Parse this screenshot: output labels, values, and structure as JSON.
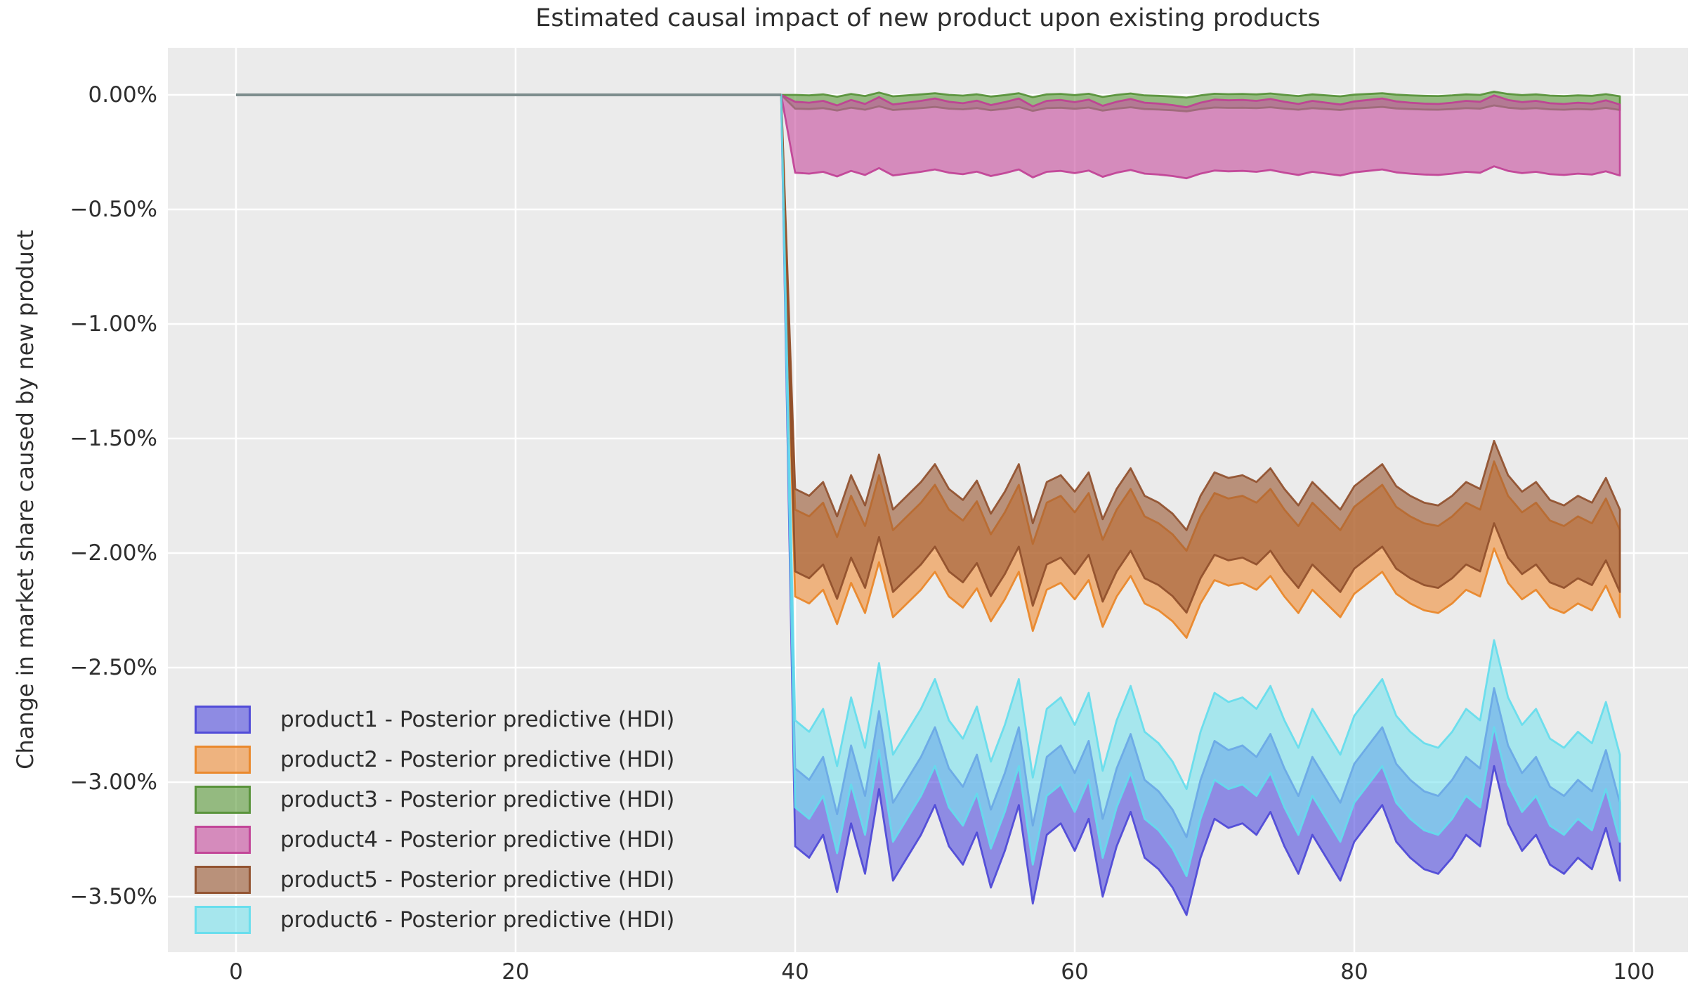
{
  "chart_data": {
    "type": "area",
    "title": "Estimated causal impact of new product upon existing products",
    "xlabel": "",
    "ylabel": "Change in market share caused by new product",
    "x_ticks": [
      0,
      20,
      40,
      60,
      80,
      100
    ],
    "x_tick_labels": [
      "0",
      "20",
      "40",
      "60",
      "80",
      "100"
    ],
    "y_tick_values": [
      0,
      -0.5,
      -1.0,
      -1.5,
      -2.0,
      -2.5,
      -3.0,
      -3.5
    ],
    "y_tick_labels": [
      "0.00%",
      "−0.50%",
      "−1.00%",
      "−1.50%",
      "−2.00%",
      "−2.50%",
      "−3.00%",
      "−3.50%"
    ],
    "xlim": [
      -4.9,
      103.9
    ],
    "ylim": [
      -3.74,
      0.21
    ],
    "grid": true,
    "legend_position": "lower left",
    "pre_period": {
      "x_start": 0,
      "x_end": 39,
      "value": 0.0
    },
    "post_period": {
      "x_start": 40,
      "x_end": 99
    },
    "noise": [
      0.0,
      -0.05,
      0.05,
      -0.2,
      0.1,
      -0.12,
      0.25,
      -0.15,
      -0.05,
      0.05,
      0.18,
      0.0,
      -0.08,
      0.06,
      -0.18,
      -0.02,
      0.18,
      -0.25,
      0.05,
      0.1,
      -0.02,
      0.12,
      -0.22,
      0.0,
      0.15,
      -0.05,
      -0.1,
      -0.18,
      -0.3,
      -0.05,
      0.12,
      0.08,
      0.1,
      0.05,
      0.15,
      0.0,
      -0.12,
      0.05,
      -0.05,
      -0.15,
      0.02,
      0.1,
      0.18,
      0.02,
      -0.05,
      -0.1,
      -0.12,
      -0.05,
      0.05,
      0.0,
      0.35,
      0.1,
      -0.02,
      0.05,
      -0.08,
      -0.12,
      -0.05,
      -0.1,
      0.08,
      -0.15
    ],
    "series": [
      {
        "name": "product1",
        "label": "product1 - Posterior predictive (HDI)",
        "color": "#5550de",
        "edge_color": "#4a45d6",
        "hdi_center": -3.11,
        "hdi_half_width": 0.17,
        "noise_scale": 1.0
      },
      {
        "name": "product2",
        "label": "product2 - Posterior predictive (HDI)",
        "color": "#f0923d",
        "edge_color": "#e98425",
        "hdi_center": -2.0,
        "hdi_half_width": 0.19,
        "noise_scale": 0.6
      },
      {
        "name": "product3",
        "label": "product3 - Posterior predictive (HDI)",
        "color": "#5f9c3f",
        "edge_color": "#528f33",
        "hdi_center": -0.03,
        "hdi_half_width": 0.03,
        "noise_scale": 0.04
      },
      {
        "name": "product4",
        "label": "product4 - Posterior predictive (HDI)",
        "color": "#c8509f",
        "edge_color": "#c03e93",
        "hdi_center": -0.185,
        "hdi_half_width": 0.155,
        "noise_scale": 0.08
      },
      {
        "name": "product5",
        "label": "product5 - Posterior predictive (HDI)",
        "color": "#9b5b36",
        "edge_color": "#8f4e2a",
        "hdi_center": -1.9,
        "hdi_half_width": 0.18,
        "noise_scale": 0.6
      },
      {
        "name": "product6",
        "label": "product6 - Posterior predictive (HDI)",
        "color": "#7ce3ef",
        "edge_color": "#63ddec",
        "hdi_center": -2.92,
        "hdi_half_width": 0.19,
        "noise_scale": 1.0
      }
    ],
    "pre_line_color": "#7d8d8d",
    "styles": {
      "fig_bg": "#ffffff",
      "axes_bg": "#ebebeb",
      "grid_color": "#ffffff",
      "text_color": "#2e2e2e",
      "fill_opacity": 0.62,
      "edge_opacity": 0.9
    }
  }
}
